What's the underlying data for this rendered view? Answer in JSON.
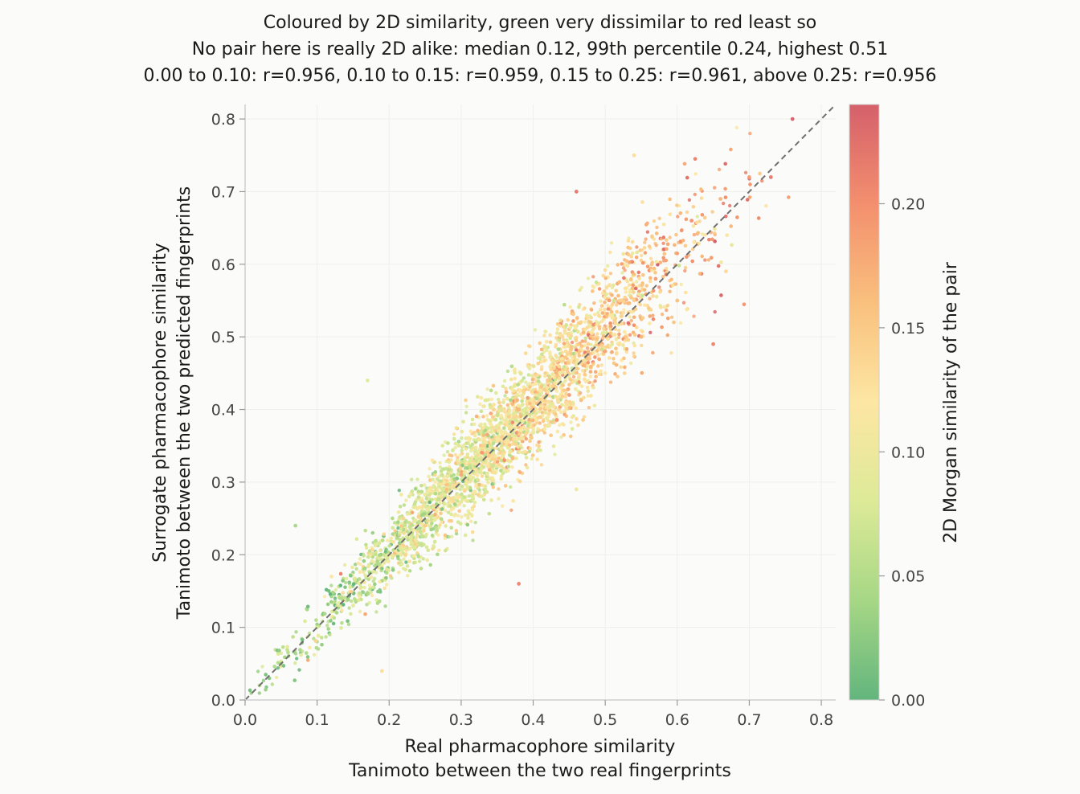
{
  "chart_data": {
    "type": "scatter",
    "title_lines": [
      "Coloured by 2D similarity, green very dissimilar to red least so",
      "No pair here is really 2D alike: median 0.12, 99th percentile 0.24, highest 0.51",
      "0.00 to 0.10: r=0.956,   0.10 to 0.15: r=0.959,   0.15 to 0.25: r=0.961,   above 0.25: r=0.956"
    ],
    "xlabel_lines": [
      "Real pharmacophore similarity",
      "Tanimoto between the two real fingerprints"
    ],
    "ylabel_lines": [
      "Surrogate pharmacophore similarity",
      "Tanimoto between the two predicted fingerprints"
    ],
    "colorbar_label": "2D Morgan similarity of the pair",
    "xlim": [
      0.0,
      0.82
    ],
    "ylim": [
      0.0,
      0.82
    ],
    "x_ticks": [
      "0.0",
      "0.1",
      "0.2",
      "0.3",
      "0.4",
      "0.5",
      "0.6",
      "0.7",
      "0.8"
    ],
    "y_ticks": [
      "0.0",
      "0.1",
      "0.2",
      "0.3",
      "0.4",
      "0.5",
      "0.6",
      "0.7",
      "0.8"
    ],
    "colorbar_ticks": [
      "0.00",
      "0.05",
      "0.10",
      "0.15",
      "0.20"
    ],
    "colorbar_range": [
      0.0,
      0.24
    ],
    "reference_line": "y = x (dashed)",
    "grid": true,
    "colormap": [
      "#63b57d",
      "#a6d785",
      "#ddea98",
      "#fde6a3",
      "#f9c07d",
      "#f38f6e",
      "#d5606b"
    ],
    "point_count_estimate": 6000,
    "points": [
      [
        0.02,
        0.02,
        0.06
      ],
      [
        0.05,
        0.05,
        0.04
      ],
      [
        0.07,
        0.24,
        0.04
      ],
      [
        0.1,
        0.1,
        0.08
      ],
      [
        0.12,
        0.17,
        0.12
      ],
      [
        0.15,
        0.13,
        0.09
      ],
      [
        0.17,
        0.44,
        0.08
      ],
      [
        0.19,
        0.04,
        0.13
      ],
      [
        0.2,
        0.2,
        0.11
      ],
      [
        0.22,
        0.25,
        0.14
      ],
      [
        0.25,
        0.24,
        0.15
      ],
      [
        0.26,
        0.33,
        0.12
      ],
      [
        0.28,
        0.29,
        0.16
      ],
      [
        0.3,
        0.31,
        0.18
      ],
      [
        0.31,
        0.26,
        0.1
      ],
      [
        0.33,
        0.35,
        0.14
      ],
      [
        0.35,
        0.36,
        0.12
      ],
      [
        0.36,
        0.33,
        0.2
      ],
      [
        0.38,
        0.16,
        0.21
      ],
      [
        0.38,
        0.4,
        0.17
      ],
      [
        0.4,
        0.41,
        0.13
      ],
      [
        0.42,
        0.44,
        0.15
      ],
      [
        0.44,
        0.47,
        0.11
      ],
      [
        0.45,
        0.42,
        0.19
      ],
      [
        0.46,
        0.29,
        0.1
      ],
      [
        0.48,
        0.52,
        0.16
      ],
      [
        0.5,
        0.48,
        0.18
      ],
      [
        0.52,
        0.55,
        0.14
      ],
      [
        0.55,
        0.5,
        0.17
      ],
      [
        0.57,
        0.58,
        0.19
      ],
      [
        0.6,
        0.55,
        0.16
      ],
      [
        0.62,
        0.66,
        0.2
      ],
      [
        0.65,
        0.49,
        0.21
      ],
      [
        0.66,
        0.69,
        0.17
      ],
      [
        0.7,
        0.72,
        0.19
      ],
      [
        0.73,
        0.72,
        0.22
      ],
      [
        0.76,
        0.8,
        0.24
      ],
      [
        0.54,
        0.75,
        0.13
      ],
      [
        0.46,
        0.7,
        0.22
      ]
    ]
  }
}
